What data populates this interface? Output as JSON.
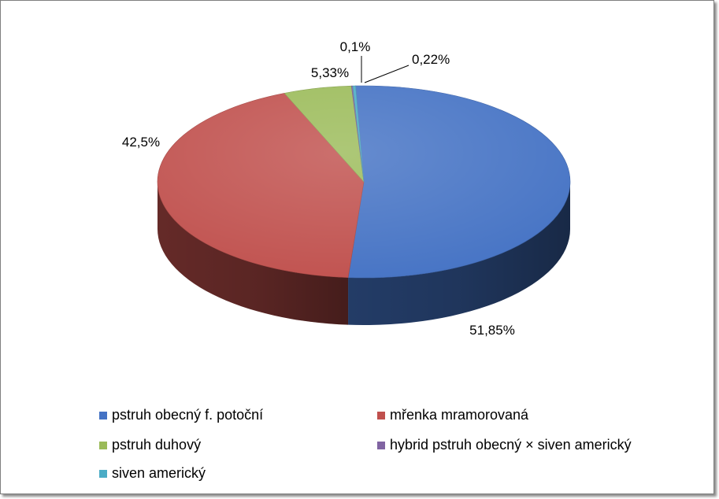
{
  "chart_data": {
    "type": "pie",
    "style": "3d",
    "title": "",
    "series": [
      {
        "name": "pstruh obecný f. potoční",
        "value": 51.85,
        "label": "51,85%",
        "color": "#4472C4"
      },
      {
        "name": "mřenka mramorovaná",
        "value": 42.5,
        "label": "42,5%",
        "color": "#C0504D"
      },
      {
        "name": "pstruh duhový",
        "value": 5.33,
        "label": "5,33%",
        "color": "#9BBB59"
      },
      {
        "name": "hybrid pstruh obecný × siven americký",
        "value": 0.1,
        "label": "0,1%",
        "color": "#8064A2"
      },
      {
        "name": "siven americký",
        "value": 0.22,
        "label": "0,22%",
        "color": "#4BACC6"
      }
    ],
    "legend_position": "bottom"
  }
}
